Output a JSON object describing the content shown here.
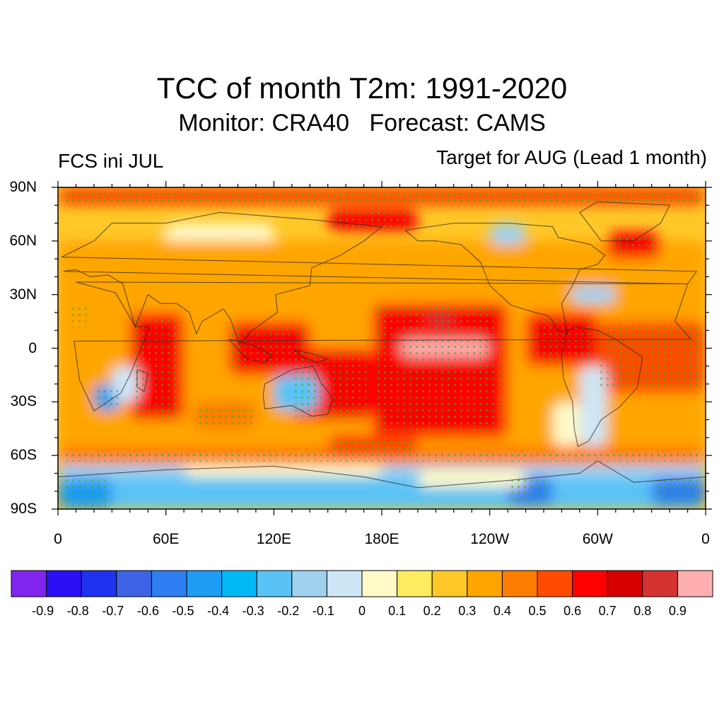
{
  "title": "TCC of month T2m: 1991-2020",
  "subtitle": "Monitor: CRA40   Forecast: CAMS",
  "left_label": "FCS ini JUL",
  "right_label": "Target for AUG (Lead 1 month)",
  "lat_labels": [
    "90N",
    "60N",
    "30N",
    "0",
    "30S",
    "60S",
    "90S"
  ],
  "lon_labels": [
    "0",
    "60E",
    "120E",
    "180E",
    "120W",
    "60W",
    "0"
  ],
  "colorbar": {
    "colors": [
      "#8224f0",
      "#2a0ff5",
      "#1e32f0",
      "#3d64e6",
      "#2d7ef0",
      "#1e9bf5",
      "#00b9f5",
      "#5ac3f5",
      "#a0d2f0",
      "#cde6f5",
      "#fffac8",
      "#ffeb5f",
      "#ffc828",
      "#ffa500",
      "#ff7d00",
      "#ff4b00",
      "#ff0000",
      "#d70000",
      "#d73232",
      "#ffafaf"
    ],
    "labels": [
      "-0.9",
      "-0.8",
      "-0.7",
      "-0.6",
      "-0.5",
      "-0.4",
      "-0.3",
      "-0.2",
      "-0.1",
      "0",
      "0.1",
      "0.2",
      "0.3",
      "0.4",
      "0.5",
      "0.6",
      "0.7",
      "0.8",
      "0.9"
    ]
  },
  "significance_dot_color": "#22bb22",
  "chart_data": {
    "type": "heatmap",
    "x_range": [
      0,
      360
    ],
    "y_range": [
      -90,
      90
    ],
    "x_ticks": [
      0,
      60,
      120,
      180,
      240,
      300,
      360
    ],
    "y_ticks": [
      90,
      60,
      30,
      0,
      -30,
      -60,
      -90
    ],
    "value_range": [
      -1,
      1
    ],
    "levels": [
      -0.9,
      -0.8,
      -0.7,
      -0.6,
      -0.5,
      -0.4,
      -0.3,
      -0.2,
      -0.1,
      0,
      0.1,
      0.2,
      0.3,
      0.4,
      0.5,
      0.6,
      0.7,
      0.8,
      0.9
    ]
  }
}
